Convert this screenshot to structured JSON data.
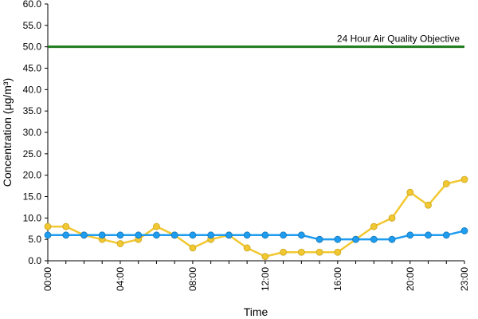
{
  "chart_data": {
    "type": "line",
    "xlabel": "Time",
    "ylabel": "Concentration (μg/m³)",
    "ylim": [
      0,
      60
    ],
    "y_ticks": [
      "0.0",
      "5.0",
      "10.0",
      "15.0",
      "20.0",
      "25.0",
      "30.0",
      "35.0",
      "40.0",
      "45.0",
      "50.0",
      "55.0",
      "60.0"
    ],
    "x_ticks": [
      "00:00",
      "04:00",
      "08:00",
      "12:00",
      "16:00",
      "20:00",
      "23:00"
    ],
    "x": [
      0,
      1,
      2,
      3,
      4,
      5,
      6,
      7,
      8,
      9,
      10,
      11,
      12,
      13,
      14,
      15,
      16,
      17,
      18,
      19,
      20,
      21,
      22,
      23
    ],
    "series": [
      {
        "color": "#f2c832",
        "values": [
          8,
          8,
          6,
          5,
          4,
          5,
          8,
          6,
          3,
          5,
          6,
          3,
          1,
          2,
          2,
          2,
          2,
          5,
          8,
          10,
          16,
          13,
          18,
          19
        ]
      },
      {
        "color": "#1e9cf0",
        "values": [
          6,
          6,
          6,
          6,
          6,
          6,
          6,
          6,
          6,
          6,
          6,
          6,
          6,
          6,
          6,
          5,
          5,
          5,
          5,
          5,
          6,
          6,
          6,
          7
        ]
      }
    ],
    "objective_line": {
      "label": "24 Hour Air Quality Objective",
      "value": 50,
      "color": "#1e7b1e"
    }
  }
}
